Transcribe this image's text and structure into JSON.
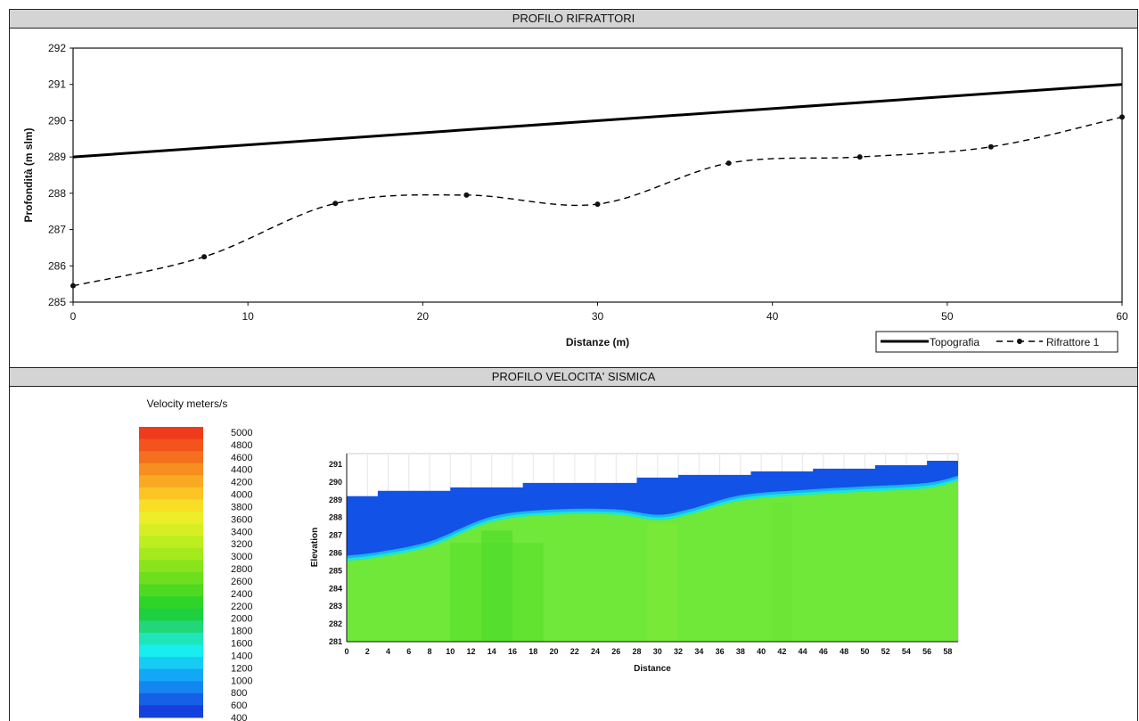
{
  "panels": {
    "top_title": "PROFILO RIFRATTORI",
    "bottom_title": "PROFILO VELOCITA' SISMICA"
  },
  "chart_data": [
    {
      "type": "line",
      "title": "PROFILO RIFRATTORI",
      "xlabel": "Distanze (m)",
      "ylabel": "Profondità (m slm)",
      "xlim": [
        0,
        60
      ],
      "ylim": [
        285,
        292
      ],
      "xticks": [
        "0",
        "10",
        "20",
        "30",
        "40",
        "50",
        "60"
      ],
      "yticks": [
        "285",
        "286",
        "287",
        "288",
        "289",
        "290",
        "291",
        "292"
      ],
      "grid": false,
      "legend": "bottom-right",
      "series": [
        {
          "name": "Topografia",
          "style": "solid",
          "color": "#000000",
          "x": [
            0,
            60
          ],
          "y": [
            289.0,
            291.0
          ]
        },
        {
          "name": "Rifrattore 1",
          "style": "dashed-markers",
          "color": "#000000",
          "x": [
            0,
            7.5,
            15,
            22.5,
            30,
            37.5,
            45,
            52.5,
            60
          ],
          "y": [
            285.45,
            286.25,
            287.72,
            287.95,
            287.7,
            288.83,
            289.0,
            289.28,
            290.1
          ]
        }
      ]
    },
    {
      "type": "heatmap",
      "title": "PROFILO VELOCITA' SISMICA",
      "xlabel": "Distance",
      "ylabel": "Elevation",
      "xlim": [
        0,
        59
      ],
      "ylim": [
        281,
        291.6
      ],
      "xticks": [
        "0",
        "2",
        "4",
        "6",
        "8",
        "10",
        "12",
        "14",
        "16",
        "18",
        "20",
        "22",
        "24",
        "26",
        "28",
        "30",
        "32",
        "34",
        "36",
        "38",
        "40",
        "42",
        "44",
        "46",
        "48",
        "50",
        "52",
        "54",
        "56",
        "58"
      ],
      "yticks": [
        "281",
        "282",
        "283",
        "284",
        "285",
        "286",
        "287",
        "288",
        "289",
        "290",
        "291"
      ],
      "colorbar": {
        "label": "Velocity meters/s",
        "ticks": [
          "5000",
          "4800",
          "4600",
          "4400",
          "4200",
          "4000",
          "3800",
          "3600",
          "3400",
          "3200",
          "3000",
          "2800",
          "2600",
          "2400",
          "2200",
          "2000",
          "1800",
          "1600",
          "1400",
          "1200",
          "1000",
          "800",
          "600",
          "400"
        ],
        "colors": [
          "#ef3a1c",
          "#f2541c",
          "#f46f1e",
          "#f78e20",
          "#f9aa22",
          "#fbc424",
          "#f8df26",
          "#eded2a",
          "#d7ef22",
          "#bdee1f",
          "#a4ea1c",
          "#89e41c",
          "#6ddf1d",
          "#4fd920",
          "#2fd429",
          "#1ecf3e",
          "#22d67a",
          "#1ee6b9",
          "#18eeee",
          "#16ccf5",
          "#13a8f5",
          "#1486ef",
          "#1560e6",
          "#1540dd"
        ]
      },
      "layers": [
        {
          "name": "surface",
          "x": [
            0,
            3,
            10,
            17,
            28,
            32,
            39,
            45,
            51,
            56,
            59
          ],
          "y": [
            289.2,
            289.5,
            289.7,
            289.95,
            290.25,
            290.4,
            290.6,
            290.75,
            290.95,
            291.2,
            291.3
          ]
        },
        {
          "name": "refractor",
          "x": [
            0,
            3,
            8,
            14,
            20,
            26,
            30,
            33,
            38,
            44,
            50,
            56,
            59
          ],
          "y": [
            285.6,
            285.8,
            286.4,
            287.8,
            288.2,
            288.2,
            287.9,
            288.2,
            289.0,
            289.3,
            289.5,
            289.7,
            290.1
          ]
        }
      ]
    }
  ]
}
